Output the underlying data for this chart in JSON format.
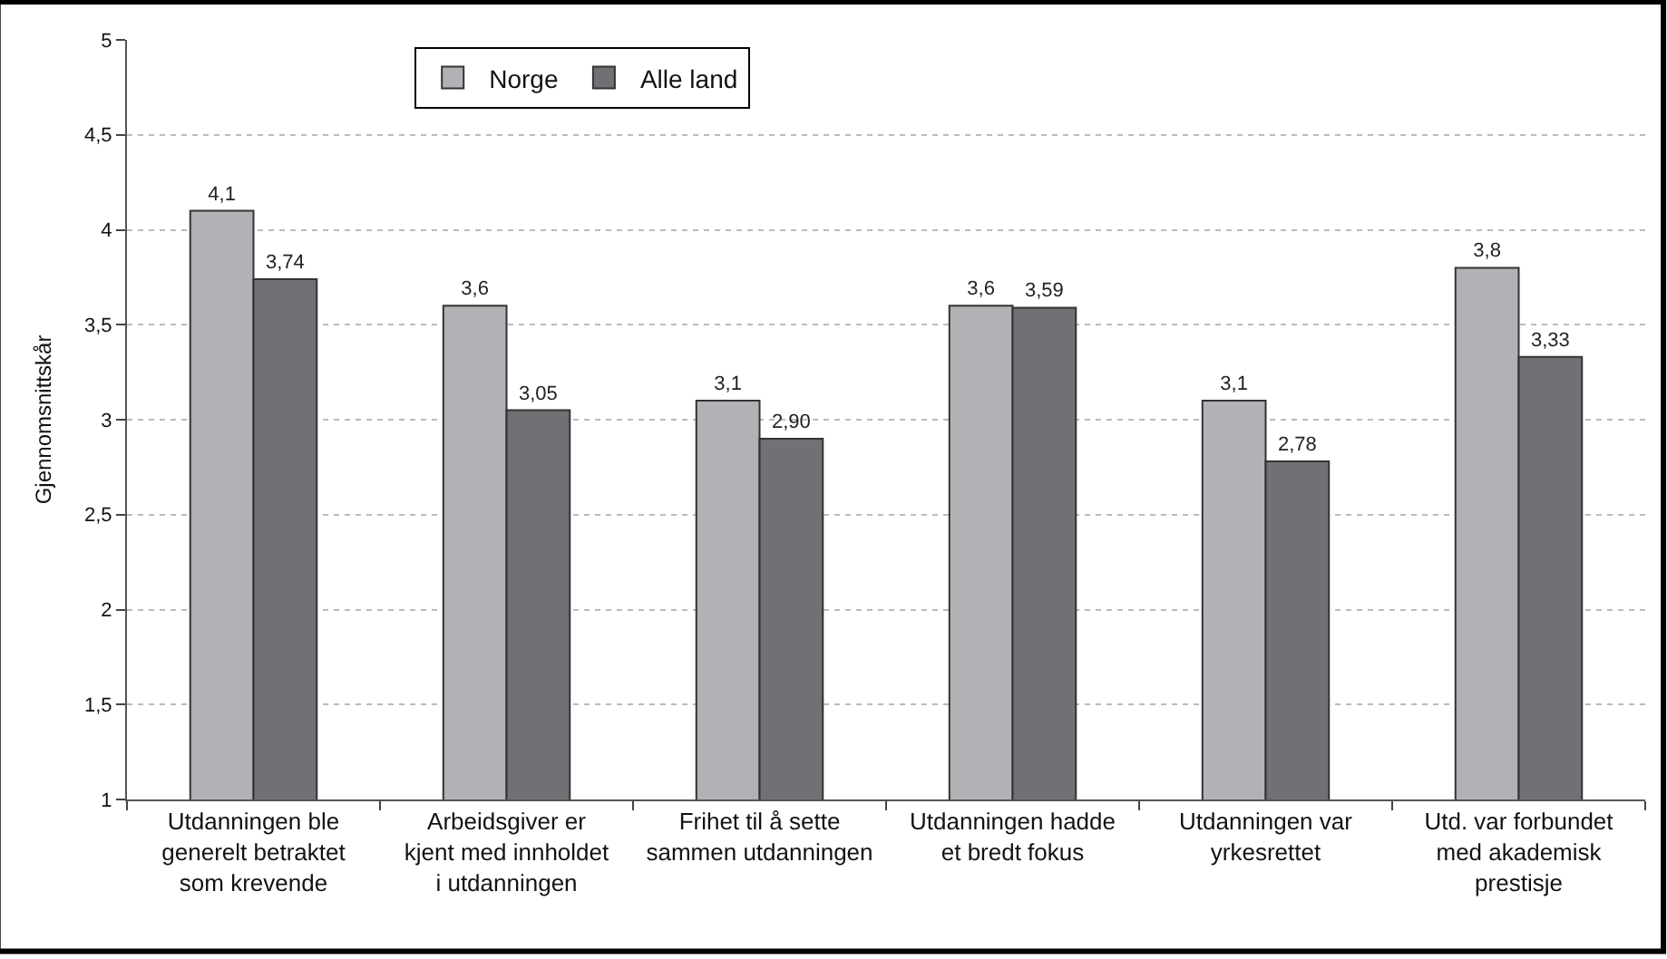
{
  "chart_data": {
    "type": "bar",
    "ylabel": "Gjennomsnittskår",
    "categories": [
      "Utdanningen ble generelt betraktet som krevende",
      "Arbeidsgiver er kjent med innholdet i utdanningen",
      "Frihet til å sette sammen utdanningen",
      "Utdanningen hadde et bredt fokus",
      "Utdanningen var yrkesrettet",
      "Utd. var forbundet med akademisk prestisje"
    ],
    "series": [
      {
        "name": "Norge",
        "color": "#b1b2b5",
        "values": [
          4.1,
          3.6,
          3.1,
          3.6,
          3.1,
          3.8
        ],
        "value_labels": [
          "4,1",
          "3,6",
          "3,1",
          "3,6",
          "3,1",
          "3,8"
        ]
      },
      {
        "name": "Alle land",
        "color": "#707175",
        "values": [
          3.74,
          3.05,
          2.9,
          3.59,
          2.78,
          3.33
        ],
        "value_labels": [
          "3,74",
          "3,05",
          "2,90",
          "3,59",
          "2,78",
          "3,33"
        ]
      }
    ],
    "ylim": [
      1,
      5
    ],
    "yticks": [
      1,
      {
        "value": 1.5,
        "label": "1,5"
      },
      2,
      {
        "value": 2.5,
        "label": "2,5"
      },
      3,
      {
        "value": 3.5,
        "label": "3,5"
      },
      4,
      {
        "value": 4.5,
        "label": "4,5"
      },
      5
    ],
    "grid": "y",
    "legend": "top"
  }
}
